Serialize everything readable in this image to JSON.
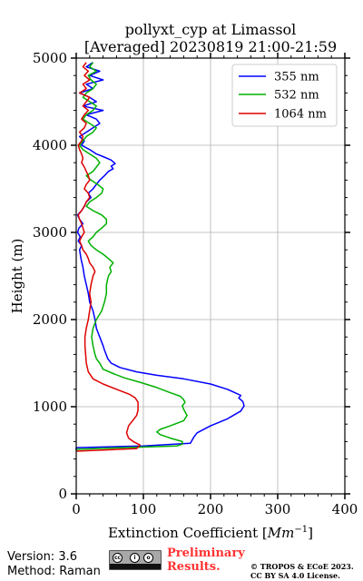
{
  "chart_data": {
    "type": "line",
    "title_line1": "pollyxt_cyp at Limassol",
    "title_line2": "[Averaged] 20230819 21:00-21:59",
    "xlabel": "Extinction Coefficient [",
    "xlabel_unit": "Mm",
    "xlabel_exp": "−1",
    "xlabel_close": "]",
    "ylabel": "Height (m)",
    "xlim": [
      0,
      400
    ],
    "ylim": [
      0,
      5000
    ],
    "xticks": [
      0,
      100,
      200,
      300,
      400
    ],
    "yticks": [
      0,
      1000,
      2000,
      3000,
      4000,
      5000
    ],
    "grid": true,
    "legend_position": "top-right",
    "series": [
      {
        "name": "355 nm",
        "color": "#0000ff",
        "points": [
          [
            0,
            500
          ],
          [
            0,
            530
          ],
          [
            100,
            550
          ],
          [
            170,
            580
          ],
          [
            175,
            650
          ],
          [
            180,
            700
          ],
          [
            200,
            780
          ],
          [
            225,
            860
          ],
          [
            245,
            950
          ],
          [
            250,
            1010
          ],
          [
            248,
            1060
          ],
          [
            242,
            1100
          ],
          [
            245,
            1130
          ],
          [
            225,
            1200
          ],
          [
            200,
            1260
          ],
          [
            160,
            1320
          ],
          [
            120,
            1360
          ],
          [
            90,
            1400
          ],
          [
            65,
            1450
          ],
          [
            52,
            1500
          ],
          [
            47,
            1550
          ],
          [
            42,
            1650
          ],
          [
            40,
            1700
          ],
          [
            35,
            1800
          ],
          [
            30,
            1900
          ],
          [
            28,
            2000
          ],
          [
            25,
            2100
          ],
          [
            20,
            2200
          ],
          [
            18,
            2300
          ],
          [
            15,
            2400
          ],
          [
            12,
            2500
          ],
          [
            10,
            2600
          ],
          [
            7,
            2700
          ],
          [
            5,
            2800
          ],
          [
            8,
            2850
          ],
          [
            3,
            2900
          ],
          [
            6,
            2950
          ],
          [
            2,
            3000
          ],
          [
            4,
            3050
          ],
          [
            10,
            3100
          ],
          [
            5,
            3150
          ],
          [
            2,
            3200
          ],
          [
            8,
            3250
          ],
          [
            12,
            3300
          ],
          [
            15,
            3350
          ],
          [
            22,
            3400
          ],
          [
            18,
            3450
          ],
          [
            25,
            3500
          ],
          [
            30,
            3550
          ],
          [
            35,
            3600
          ],
          [
            42,
            3650
          ],
          [
            48,
            3700
          ],
          [
            55,
            3730
          ],
          [
            52,
            3760
          ],
          [
            58,
            3790
          ],
          [
            52,
            3830
          ],
          [
            40,
            3870
          ],
          [
            30,
            3900
          ],
          [
            20,
            3950
          ],
          [
            8,
            4000
          ],
          [
            12,
            4050
          ],
          [
            5,
            4100
          ],
          [
            15,
            4150
          ],
          [
            25,
            4200
          ],
          [
            35,
            4250
          ],
          [
            30,
            4300
          ],
          [
            15,
            4350
          ],
          [
            40,
            4400
          ],
          [
            10,
            4450
          ],
          [
            30,
            4500
          ],
          [
            20,
            4550
          ],
          [
            5,
            4600
          ],
          [
            25,
            4650
          ],
          [
            15,
            4700
          ],
          [
            40,
            4750
          ],
          [
            20,
            4800
          ],
          [
            35,
            4850
          ],
          [
            15,
            4900
          ],
          [
            25,
            4950
          ]
        ]
      },
      {
        "name": "532 nm",
        "color": "#00b000",
        "points": [
          [
            0,
            510
          ],
          [
            70,
            530
          ],
          [
            150,
            550
          ],
          [
            158,
            570
          ],
          [
            158,
            600
          ],
          [
            140,
            640
          ],
          [
            125,
            680
          ],
          [
            120,
            710
          ],
          [
            125,
            740
          ],
          [
            140,
            780
          ],
          [
            160,
            840
          ],
          [
            165,
            900
          ],
          [
            160,
            970
          ],
          [
            158,
            1010
          ],
          [
            162,
            1050
          ],
          [
            160,
            1080
          ],
          [
            155,
            1120
          ],
          [
            140,
            1160
          ],
          [
            120,
            1220
          ],
          [
            95,
            1280
          ],
          [
            72,
            1330
          ],
          [
            55,
            1380
          ],
          [
            40,
            1430
          ],
          [
            35,
            1500
          ],
          [
            30,
            1550
          ],
          [
            28,
            1600
          ],
          [
            25,
            1700
          ],
          [
            23,
            1800
          ],
          [
            25,
            1900
          ],
          [
            30,
            2000
          ],
          [
            38,
            2100
          ],
          [
            42,
            2200
          ],
          [
            45,
            2300
          ],
          [
            45,
            2400
          ],
          [
            48,
            2500
          ],
          [
            52,
            2550
          ],
          [
            50,
            2600
          ],
          [
            55,
            2650
          ],
          [
            48,
            2700
          ],
          [
            40,
            2750
          ],
          [
            30,
            2800
          ],
          [
            22,
            2850
          ],
          [
            18,
            2900
          ],
          [
            25,
            2950
          ],
          [
            30,
            3000
          ],
          [
            38,
            3050
          ],
          [
            45,
            3100
          ],
          [
            45,
            3150
          ],
          [
            38,
            3200
          ],
          [
            25,
            3250
          ],
          [
            15,
            3300
          ],
          [
            20,
            3350
          ],
          [
            30,
            3400
          ],
          [
            38,
            3450
          ],
          [
            40,
            3500
          ],
          [
            32,
            3550
          ],
          [
            22,
            3600
          ],
          [
            15,
            3650
          ],
          [
            25,
            3700
          ],
          [
            30,
            3750
          ],
          [
            35,
            3800
          ],
          [
            30,
            3850
          ],
          [
            20,
            3900
          ],
          [
            10,
            3950
          ],
          [
            5,
            4000
          ],
          [
            10,
            4050
          ],
          [
            15,
            4100
          ],
          [
            25,
            4150
          ],
          [
            30,
            4200
          ],
          [
            20,
            4250
          ],
          [
            10,
            4300
          ],
          [
            15,
            4350
          ],
          [
            25,
            4400
          ],
          [
            30,
            4450
          ],
          [
            20,
            4500
          ],
          [
            10,
            4550
          ],
          [
            15,
            4600
          ],
          [
            25,
            4650
          ],
          [
            30,
            4700
          ],
          [
            22,
            4750
          ],
          [
            18,
            4800
          ],
          [
            30,
            4850
          ],
          [
            20,
            4900
          ],
          [
            25,
            4950
          ]
        ]
      },
      {
        "name": "1064 nm",
        "color": "#dd0000",
        "points": [
          [
            0,
            490
          ],
          [
            90,
            520
          ],
          [
            95,
            560
          ],
          [
            85,
            600
          ],
          [
            78,
            640
          ],
          [
            75,
            700
          ],
          [
            78,
            780
          ],
          [
            85,
            850
          ],
          [
            90,
            900
          ],
          [
            92,
            960
          ],
          [
            92,
            1000
          ],
          [
            92,
            1050
          ],
          [
            88,
            1100
          ],
          [
            80,
            1140
          ],
          [
            60,
            1200
          ],
          [
            40,
            1260
          ],
          [
            25,
            1320
          ],
          [
            18,
            1400
          ],
          [
            15,
            1500
          ],
          [
            14,
            1600
          ],
          [
            13,
            1700
          ],
          [
            13,
            1800
          ],
          [
            15,
            1900
          ],
          [
            18,
            2000
          ],
          [
            20,
            2100
          ],
          [
            22,
            2200
          ],
          [
            20,
            2300
          ],
          [
            22,
            2400
          ],
          [
            25,
            2500
          ],
          [
            28,
            2550
          ],
          [
            25,
            2600
          ],
          [
            20,
            2650
          ],
          [
            18,
            2700
          ],
          [
            15,
            2750
          ],
          [
            10,
            2800
          ],
          [
            8,
            2850
          ],
          [
            5,
            2900
          ],
          [
            8,
            2950
          ],
          [
            12,
            3000
          ],
          [
            10,
            3050
          ],
          [
            8,
            3100
          ],
          [
            5,
            3150
          ],
          [
            3,
            3200
          ],
          [
            8,
            3250
          ],
          [
            12,
            3300
          ],
          [
            15,
            3350
          ],
          [
            20,
            3400
          ],
          [
            18,
            3450
          ],
          [
            12,
            3500
          ],
          [
            15,
            3550
          ],
          [
            20,
            3600
          ],
          [
            18,
            3650
          ],
          [
            15,
            3700
          ],
          [
            12,
            3750
          ],
          [
            8,
            3800
          ],
          [
            10,
            3850
          ],
          [
            8,
            3900
          ],
          [
            5,
            3950
          ],
          [
            3,
            4000
          ],
          [
            8,
            4050
          ],
          [
            10,
            4100
          ],
          [
            5,
            4150
          ],
          [
            12,
            4200
          ],
          [
            15,
            4250
          ],
          [
            8,
            4300
          ],
          [
            12,
            4350
          ],
          [
            18,
            4400
          ],
          [
            10,
            4450
          ],
          [
            15,
            4500
          ],
          [
            20,
            4550
          ],
          [
            5,
            4600
          ],
          [
            15,
            4650
          ],
          [
            10,
            4700
          ],
          [
            20,
            4750
          ],
          [
            12,
            4800
          ],
          [
            18,
            4850
          ],
          [
            10,
            4900
          ],
          [
            15,
            4950
          ]
        ]
      }
    ]
  },
  "footer": {
    "version": "Version: 3.6",
    "method": "Method: Raman",
    "preliminary_line1": "Preliminary",
    "preliminary_line2": "Results.",
    "copyright_line1": "© TROPOS & ECoE 2023.",
    "copyright_line2": "CC BY SA 4.0 License.",
    "license_badge": "cc-by-sa-badge"
  }
}
